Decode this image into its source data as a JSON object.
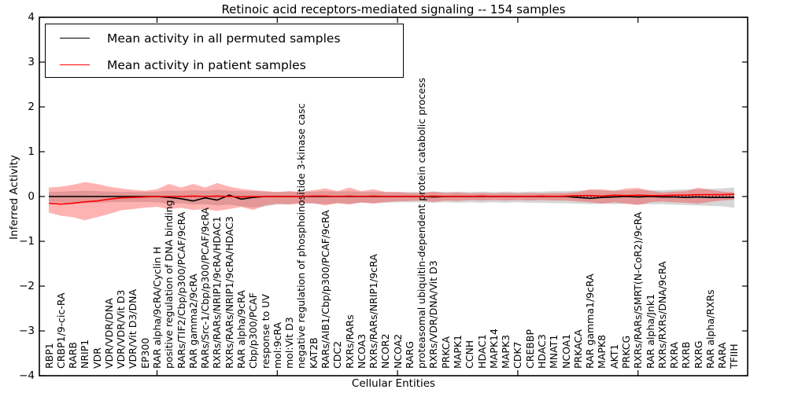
{
  "figure": {
    "title": "Retinoic acid receptors-mediated signaling -- 154 samples",
    "xlabel": "Cellular Entities",
    "ylabel": "Inferred Activity"
  },
  "legend": {
    "entries": [
      {
        "label": "Mean activity in all permuted samples",
        "color": "#000000"
      },
      {
        "label": "Mean activity in patient samples",
        "color": "#ff0000"
      }
    ],
    "position": "upper left"
  },
  "chart_data": {
    "type": "line",
    "title": "Retinoic acid receptors-mediated signaling -- 154 samples",
    "xlabel": "Cellular Entities",
    "ylabel": "Inferred Activity",
    "ylim": [
      -4,
      4
    ],
    "yticks": [
      4,
      3,
      2,
      1,
      0,
      -1,
      -2,
      -3,
      -4
    ],
    "xtick_positions": [
      10,
      20,
      30,
      40,
      50
    ],
    "grid": false,
    "legend_position": "upper left",
    "zero_reference_line": 0,
    "categories": [
      "RBP1",
      "CRBP1/9-cic-RA",
      "RARB",
      "NRIP1",
      "VDR",
      "VDR/VDR/DNA",
      "VDR/VDR/Vit D3",
      "VDR/Vit D3/DNA",
      "EP300",
      "RAR alpha/9cRA/Cyclin H",
      "positive regulation of DNA binding",
      "RARs/TIF2/Cbp/p300/PCAF/9cRA",
      "RAR gamma2/9cRA",
      "RARs/Src-1/Cbp/p300/PCAF/9cRA",
      "RXRs/RARs/NRIP1/9cRA/HDAC1",
      "RXRs/RARs/NRIP1/9cRA/HDAC3",
      "RAR alpha/9cRA",
      "Cbp/p300/PCAF",
      "response to UV",
      "mol:9cRA",
      "mol:Vit D3",
      "negative regulation of phosphoinositide 3-kinase casc",
      "KAT2B",
      "RARs/AIB1/Cbp/p300/PCAF/9cRA",
      "CDC2",
      "RXRs/RARs",
      "NCOA3",
      "RXRs/RARs/NRIP1/9cRA",
      "NCOR2",
      "NCOA2",
      "RARG",
      "proteasomal ubiquitin-dependent protein catabolic process",
      "RXRs/VDR/DNA/Vit D3",
      "PRKCA",
      "MAPK1",
      "CCNH",
      "HDAC1",
      "MAPK14",
      "MAPK3",
      "CDK7",
      "CREBBP",
      "HDAC3",
      "MNAT1",
      "NCOA1",
      "PRKACA",
      "RAR gamma1/9cRA",
      "MAPK8",
      "AKT1",
      "PRKCG",
      "RXRs/RARs/SMRT(N-CoR2)/9cRA",
      "RAR alpha/Jnk1",
      "RXRs/RXRs/DNA/9cRA",
      "RXRA",
      "RXRB",
      "RXRG",
      "RAR alpha/RXRs",
      "RARA",
      "TFIIH"
    ],
    "series": [
      {
        "name": "Mean activity in all permuted samples",
        "color": "#000000",
        "values": [
          0,
          0,
          0,
          0,
          0,
          0,
          0,
          0,
          0,
          0,
          -0.02,
          -0.05,
          -0.1,
          -0.03,
          -0.08,
          0.03,
          -0.06,
          -0.02,
          0,
          0,
          0,
          0,
          0,
          0,
          0,
          0,
          0,
          0,
          0,
          0,
          0,
          0,
          -0.01,
          0,
          0,
          0,
          0,
          0,
          0,
          0,
          0,
          0,
          0,
          0,
          -0.02,
          -0.04,
          -0.02,
          -0.01,
          0,
          -0.01,
          0,
          -0.01,
          -0.01,
          -0.02,
          -0.01,
          -0.02,
          -0.02,
          -0.02
        ]
      },
      {
        "name": "Mean activity in patient samples",
        "color": "#ff0000",
        "values": [
          -0.15,
          -0.17,
          -0.15,
          -0.12,
          -0.1,
          -0.06,
          -0.03,
          -0.02,
          -0.01,
          0,
          0,
          0,
          0.01,
          0,
          0.01,
          0,
          -0.01,
          0,
          0,
          0,
          0,
          0,
          0.01,
          0.01,
          0,
          0.01,
          0,
          0.01,
          0,
          0,
          0,
          0,
          0.01,
          0,
          0,
          0,
          0.01,
          0,
          0,
          0,
          0,
          0.01,
          0,
          0.01,
          0.02,
          0.02,
          0.01,
          0.03,
          0.02,
          0.03,
          0.02,
          0.02,
          0.03,
          0.03,
          0.04,
          0.04,
          0.04,
          0.05
        ]
      }
    ],
    "bands": [
      {
        "name": "permuted samples std band",
        "color": "rgba(0,0,0,0.16)",
        "upper": [
          0.1,
          0.11,
          0.12,
          0.13,
          0.12,
          0.11,
          0.1,
          0.1,
          0.1,
          0.11,
          0.13,
          0.12,
          0.14,
          0.13,
          0.15,
          0.13,
          0.12,
          0.12,
          0.11,
          0.1,
          0.11,
          0.1,
          0.11,
          0.12,
          0.11,
          0.12,
          0.1,
          0.11,
          0.1,
          0.1,
          0.1,
          0.1,
          0.11,
          0.1,
          0.11,
          0.1,
          0.11,
          0.1,
          0.11,
          0.1,
          0.11,
          0.11,
          0.12,
          0.12,
          0.13,
          0.14,
          0.13,
          0.14,
          0.13,
          0.15,
          0.14,
          0.14,
          0.15,
          0.16,
          0.16,
          0.17,
          0.18,
          0.2
        ],
        "lower": [
          -0.12,
          -0.13,
          -0.14,
          -0.15,
          -0.14,
          -0.13,
          -0.12,
          -0.12,
          -0.12,
          -0.13,
          -0.16,
          -0.15,
          -0.18,
          -0.17,
          -0.2,
          -0.18,
          -0.22,
          -0.25,
          -0.22,
          -0.18,
          -0.17,
          -0.15,
          -0.16,
          -0.17,
          -0.15,
          -0.16,
          -0.14,
          -0.15,
          -0.14,
          -0.13,
          -0.13,
          -0.13,
          -0.14,
          -0.13,
          -0.14,
          -0.13,
          -0.14,
          -0.13,
          -0.14,
          -0.13,
          -0.14,
          -0.14,
          -0.15,
          -0.15,
          -0.16,
          -0.17,
          -0.16,
          -0.17,
          -0.16,
          -0.18,
          -0.17,
          -0.17,
          -0.18,
          -0.19,
          -0.2,
          -0.21,
          -0.22,
          -0.25
        ]
      },
      {
        "name": "patient samples std band",
        "color": "rgba(255,30,30,0.34)",
        "upper": [
          0.2,
          0.22,
          0.26,
          0.32,
          0.28,
          0.22,
          0.18,
          0.15,
          0.13,
          0.16,
          0.28,
          0.2,
          0.28,
          0.2,
          0.3,
          0.22,
          0.17,
          0.14,
          0.12,
          0.1,
          0.12,
          0.1,
          0.14,
          0.18,
          0.12,
          0.2,
          0.12,
          0.16,
          0.1,
          0.1,
          0.08,
          0.08,
          0.11,
          0.08,
          0.09,
          0.07,
          0.08,
          0.07,
          0.08,
          0.07,
          0.08,
          0.07,
          0.08,
          0.08,
          0.1,
          0.16,
          0.16,
          0.12,
          0.18,
          0.19,
          0.13,
          0.09,
          0.11,
          0.12,
          0.2,
          0.15,
          0.11,
          0.09
        ],
        "lower": [
          -0.36,
          -0.43,
          -0.46,
          -0.53,
          -0.46,
          -0.39,
          -0.31,
          -0.28,
          -0.25,
          -0.23,
          -0.28,
          -0.25,
          -0.3,
          -0.28,
          -0.32,
          -0.28,
          -0.23,
          -0.3,
          -0.2,
          -0.16,
          -0.18,
          -0.15,
          -0.15,
          -0.2,
          -0.15,
          -0.18,
          -0.13,
          -0.16,
          -0.12,
          -0.11,
          -0.1,
          -0.09,
          -0.12,
          -0.09,
          -0.1,
          -0.08,
          -0.09,
          -0.08,
          -0.09,
          -0.08,
          -0.09,
          -0.08,
          -0.09,
          -0.09,
          -0.11,
          -0.13,
          -0.16,
          -0.13,
          -0.16,
          -0.19,
          -0.13,
          -0.11,
          -0.13,
          -0.14,
          -0.16,
          -0.12,
          -0.09,
          -0.07
        ]
      }
    ]
  }
}
